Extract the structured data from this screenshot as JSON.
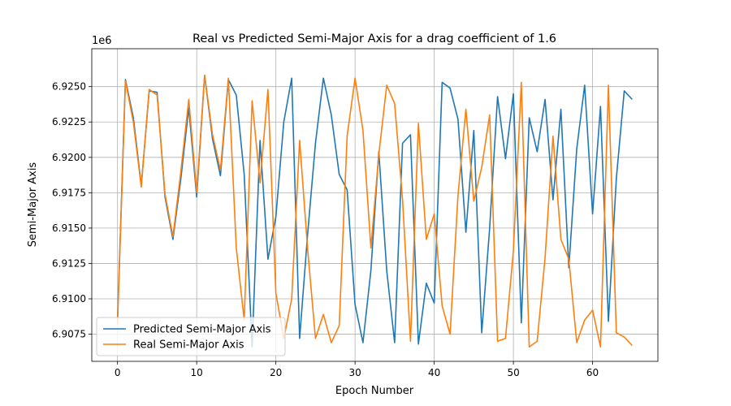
{
  "chart_data": {
    "type": "line",
    "title": "Real vs Predicted Semi-Major Axis for a drag coefficient of 1.6",
    "xlabel": "Epoch Number",
    "ylabel": "Semi-Major Axis",
    "y_offset_label": "1e6",
    "xlim": [
      -3.25,
      68.25
    ],
    "ylim": [
      6.90558,
      6.92768
    ],
    "y_scale_factor": 1000000,
    "x_ticks": [
      0,
      10,
      20,
      30,
      40,
      50,
      60
    ],
    "x_tick_labels": [
      "0",
      "10",
      "20",
      "30",
      "40",
      "50",
      "60"
    ],
    "y_ticks": [
      6.9075,
      6.91,
      6.9125,
      6.915,
      6.9175,
      6.92,
      6.9225,
      6.925
    ],
    "y_tick_labels": [
      "6.9075",
      "6.9100",
      "6.9125",
      "6.9150",
      "6.9175",
      "6.9200",
      "6.9225",
      "6.9250"
    ],
    "grid": true,
    "legend_position": "lower-left",
    "x": [
      0,
      1,
      2,
      3,
      4,
      5,
      6,
      7,
      8,
      9,
      10,
      11,
      12,
      13,
      14,
      15,
      16,
      17,
      18,
      19,
      20,
      21,
      22,
      23,
      24,
      25,
      26,
      27,
      28,
      29,
      30,
      31,
      32,
      33,
      34,
      35,
      36,
      37,
      38,
      39,
      40,
      41,
      42,
      43,
      44,
      45,
      46,
      47,
      48,
      49,
      50,
      51,
      52,
      53,
      54,
      55,
      56,
      57,
      58,
      59,
      60,
      61,
      62,
      63,
      64,
      65
    ],
    "series": [
      {
        "name": "Predicted Semi-Major Axis",
        "color": "#1f77b4",
        "values": [
          6.9085,
          6.9255,
          6.9228,
          6.918,
          6.9247,
          6.9246,
          6.9172,
          6.9142,
          6.9185,
          6.9235,
          6.9172,
          6.9258,
          6.9213,
          6.9187,
          6.9255,
          6.9244,
          6.9188,
          6.9066,
          6.9212,
          6.9128,
          6.9158,
          6.9225,
          6.9256,
          6.9072,
          6.9145,
          6.921,
          6.9256,
          6.923,
          6.9188,
          6.9177,
          6.9096,
          6.9069,
          6.912,
          6.9204,
          6.912,
          6.9069,
          6.921,
          6.9216,
          6.9068,
          6.9111,
          6.9097,
          6.9253,
          6.9249,
          6.9227,
          6.9147,
          6.9219,
          6.9076,
          6.915,
          6.9243,
          6.9199,
          6.9245,
          6.9083,
          6.9228,
          6.9204,
          6.9241,
          6.917,
          6.9234,
          6.9122,
          6.9206,
          6.9251,
          6.916,
          6.9236,
          6.9084,
          6.9185,
          6.9247,
          6.9241
        ]
      },
      {
        "name": "Real Semi-Major Axis",
        "color": "#ff7f0e",
        "values": [
          6.9082,
          6.9254,
          6.9225,
          6.9179,
          6.9248,
          6.9244,
          6.9174,
          6.9144,
          6.919,
          6.9241,
          6.9175,
          6.9258,
          6.9216,
          6.9191,
          6.9256,
          6.9136,
          6.9085,
          6.924,
          6.9182,
          6.9248,
          6.9104,
          6.9072,
          6.91,
          6.9212,
          6.9136,
          6.9072,
          6.9089,
          6.9069,
          6.9081,
          6.9215,
          6.9256,
          6.9219,
          6.9136,
          6.9202,
          6.9251,
          6.9238,
          6.917,
          6.907,
          6.9224,
          6.9142,
          6.916,
          6.9095,
          6.9075,
          6.9173,
          6.9234,
          6.9169,
          6.9193,
          6.923,
          6.907,
          6.9072,
          6.9134,
          6.9253,
          6.9066,
          6.907,
          6.9129,
          6.9215,
          6.9142,
          6.9128,
          6.9069,
          6.9085,
          6.9092,
          6.9066,
          6.9251,
          6.9076,
          6.9073,
          6.9067
        ]
      }
    ]
  }
}
